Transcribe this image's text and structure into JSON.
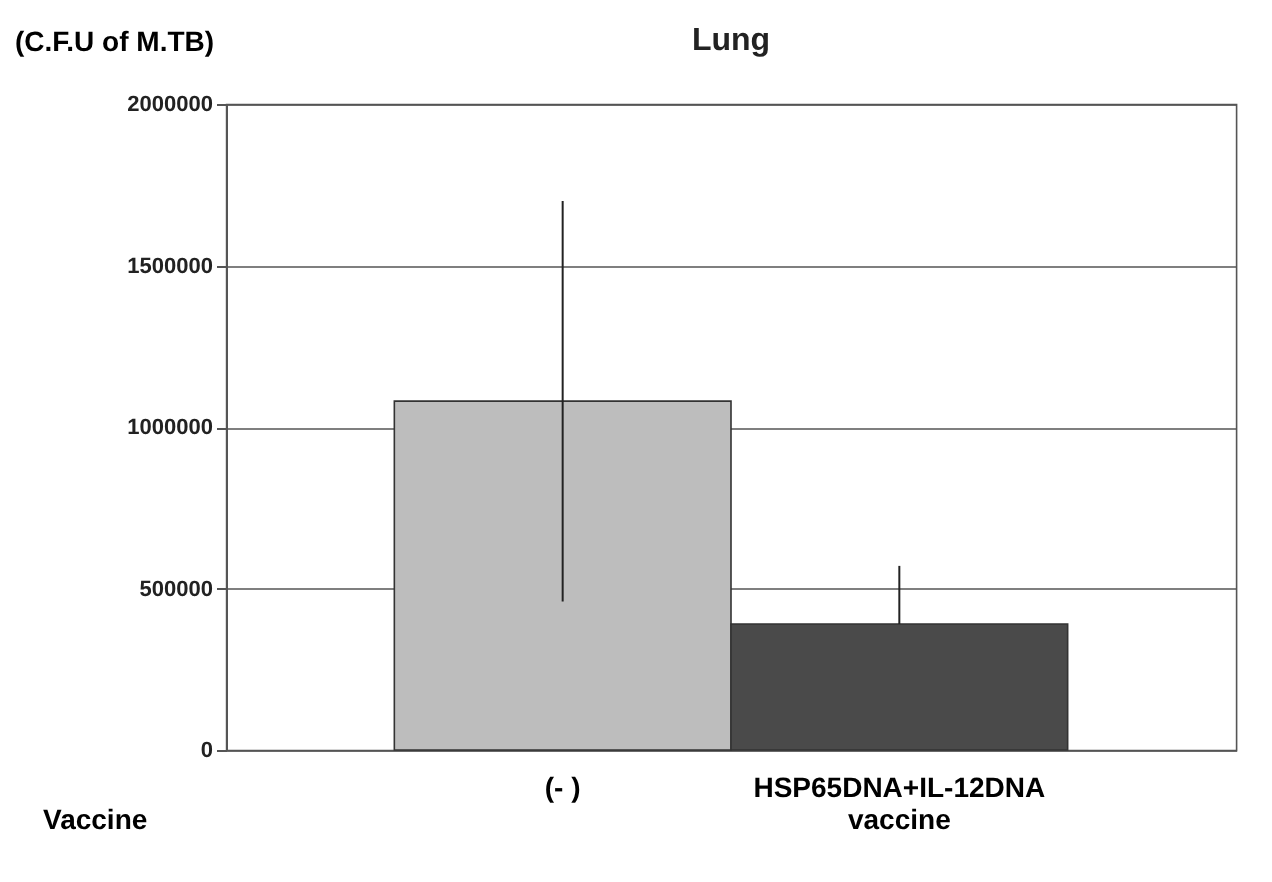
{
  "chart_data": {
    "type": "bar",
    "title": "Lung",
    "ylabel": "(C.F.U of M.TB)",
    "xlabel": "Vaccine",
    "categories": [
      "(- )",
      "HSP65DNA+IL-12DNA vaccine"
    ],
    "values": [
      1080000,
      390000
    ],
    "colors": [
      "#bdbdbd",
      "#4a4a4a"
    ],
    "errors": [
      [
        460000,
        1700000
      ],
      [
        390000,
        570000
      ]
    ],
    "ylim": [
      0,
      2000000
    ],
    "yticks": [
      0,
      500000,
      1000000,
      1500000,
      2000000
    ],
    "grid": "y"
  }
}
